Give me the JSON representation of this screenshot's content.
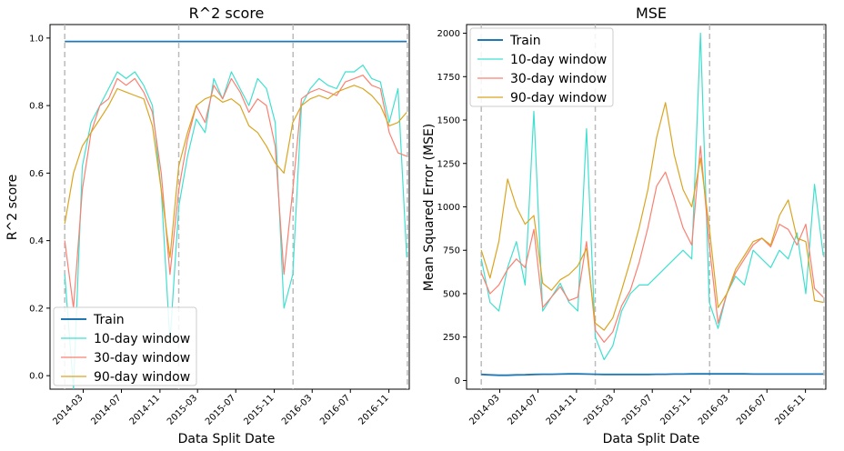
{
  "colors": {
    "train": "#1f77b4",
    "w10": "#40e0d0",
    "w30": "#fa8072",
    "w90": "#daa520",
    "vline": "#bbbbbb"
  },
  "chart_data": [
    {
      "type": "line",
      "title": "R^2 score",
      "xlabel": "Data Split Date",
      "ylabel": "R^2 score",
      "xlim": [
        "2013-11-15",
        "2017-01-05"
      ],
      "ylim": [
        -0.04,
        1.04
      ],
      "yticks": [
        0.0,
        0.2,
        0.4,
        0.6,
        0.8,
        1.0
      ],
      "ytick_labels": [
        "0.0",
        "0.2",
        "0.4",
        "0.6",
        "0.8",
        "1.0"
      ],
      "xticks": [
        "2014-03-01",
        "2014-07-01",
        "2014-11-01",
        "2015-03-01",
        "2015-07-01",
        "2015-11-01",
        "2016-03-01",
        "2016-07-01",
        "2016-11-01"
      ],
      "xtick_labels": [
        "2014-03",
        "2014-07",
        "2014-11",
        "2015-03",
        "2015-07",
        "2015-11",
        "2016-03",
        "2016-07",
        "2016-11"
      ],
      "vlines": [
        "2014-01-01",
        "2014-12-31",
        "2015-12-31",
        "2016-12-30"
      ],
      "legend": "lower-left",
      "legend_entries": [
        "Train",
        "10-day window",
        "30-day window",
        "90-day window"
      ],
      "x": [
        "2014-01-01",
        "2014-01-29",
        "2014-02-26",
        "2014-03-26",
        "2014-04-23",
        "2014-05-21",
        "2014-06-18",
        "2014-07-16",
        "2014-08-13",
        "2014-09-10",
        "2014-10-08",
        "2014-11-05",
        "2014-12-03",
        "2014-12-31",
        "2015-01-28",
        "2015-02-25",
        "2015-03-25",
        "2015-04-22",
        "2015-05-20",
        "2015-06-17",
        "2015-07-15",
        "2015-08-12",
        "2015-09-09",
        "2015-10-07",
        "2015-11-04",
        "2015-12-02",
        "2015-12-30",
        "2016-01-27",
        "2016-02-24",
        "2016-03-23",
        "2016-04-20",
        "2016-05-18",
        "2016-06-15",
        "2016-07-13",
        "2016-08-10",
        "2016-09-07",
        "2016-10-05",
        "2016-11-02",
        "2016-11-30",
        "2016-12-28"
      ],
      "series": [
        {
          "name": "Train",
          "color_key": "train",
          "values": [
            0.99,
            0.99,
            0.99,
            0.99,
            0.99,
            0.99,
            0.99,
            0.99,
            0.99,
            0.99,
            0.99,
            0.99,
            0.99,
            0.99,
            0.99,
            0.99,
            0.99,
            0.99,
            0.99,
            0.99,
            0.99,
            0.99,
            0.99,
            0.99,
            0.99,
            0.99,
            0.99,
            0.99,
            0.99,
            0.99,
            0.99,
            0.99,
            0.99,
            0.99,
            0.99,
            0.99,
            0.99,
            0.99,
            0.99,
            0.99
          ]
        },
        {
          "name": "10-day window",
          "color_key": "w10",
          "values": [
            0.3,
            -0.04,
            0.62,
            0.75,
            0.8,
            0.85,
            0.9,
            0.88,
            0.9,
            0.86,
            0.8,
            0.55,
            0.1,
            0.5,
            0.65,
            0.76,
            0.72,
            0.88,
            0.82,
            0.9,
            0.85,
            0.8,
            0.88,
            0.85,
            0.75,
            0.2,
            0.3,
            0.8,
            0.85,
            0.88,
            0.86,
            0.85,
            0.9,
            0.9,
            0.92,
            0.88,
            0.87,
            0.75,
            0.85,
            0.35
          ]
        },
        {
          "name": "30-day window",
          "color_key": "w30",
          "values": [
            0.4,
            0.2,
            0.55,
            0.72,
            0.8,
            0.82,
            0.88,
            0.86,
            0.88,
            0.84,
            0.78,
            0.6,
            0.3,
            0.55,
            0.7,
            0.8,
            0.75,
            0.86,
            0.82,
            0.88,
            0.84,
            0.78,
            0.82,
            0.8,
            0.68,
            0.3,
            0.55,
            0.82,
            0.84,
            0.85,
            0.84,
            0.83,
            0.87,
            0.88,
            0.89,
            0.86,
            0.85,
            0.72,
            0.66,
            0.65
          ]
        },
        {
          "name": "90-day window",
          "color_key": "w90",
          "values": [
            0.45,
            0.6,
            0.68,
            0.72,
            0.76,
            0.8,
            0.85,
            0.84,
            0.83,
            0.82,
            0.74,
            0.55,
            0.35,
            0.62,
            0.72,
            0.8,
            0.82,
            0.83,
            0.81,
            0.82,
            0.8,
            0.74,
            0.72,
            0.68,
            0.63,
            0.6,
            0.75,
            0.8,
            0.82,
            0.83,
            0.82,
            0.84,
            0.85,
            0.86,
            0.85,
            0.83,
            0.8,
            0.74,
            0.75,
            0.78
          ]
        }
      ]
    },
    {
      "type": "line",
      "title": "MSE",
      "xlabel": "Data Split Date",
      "ylabel": "Mean Squared Error (MSE)",
      "xlim": [
        "2013-11-15",
        "2017-01-05"
      ],
      "ylim": [
        -50,
        2050
      ],
      "yticks": [
        0,
        250,
        500,
        750,
        1000,
        1250,
        1500,
        1750,
        2000
      ],
      "ytick_labels": [
        "0",
        "250",
        "500",
        "750",
        "1000",
        "1250",
        "1500",
        "1750",
        "2000"
      ],
      "xticks": [
        "2014-03-01",
        "2014-07-01",
        "2014-11-01",
        "2015-03-01",
        "2015-07-01",
        "2015-11-01",
        "2016-03-01",
        "2016-07-01",
        "2016-11-01"
      ],
      "xtick_labels": [
        "2014-03",
        "2014-07",
        "2014-11",
        "2015-03",
        "2015-07",
        "2015-11",
        "2016-03",
        "2016-07",
        "2016-11"
      ],
      "vlines": [
        "2014-01-01",
        "2014-12-31",
        "2015-12-31",
        "2016-12-30"
      ],
      "legend": "top-left",
      "legend_entries": [
        "Train",
        "10-day window",
        "30-day window",
        "90-day window"
      ],
      "x": [
        "2014-01-01",
        "2014-01-29",
        "2014-02-26",
        "2014-03-26",
        "2014-04-23",
        "2014-05-21",
        "2014-06-18",
        "2014-07-16",
        "2014-08-13",
        "2014-09-10",
        "2014-10-08",
        "2014-11-05",
        "2014-12-03",
        "2014-12-31",
        "2015-01-28",
        "2015-02-25",
        "2015-03-25",
        "2015-04-22",
        "2015-05-20",
        "2015-06-17",
        "2015-07-15",
        "2015-08-12",
        "2015-09-09",
        "2015-10-07",
        "2015-11-04",
        "2015-12-02",
        "2015-12-30",
        "2016-01-27",
        "2016-02-24",
        "2016-03-23",
        "2016-04-20",
        "2016-05-18",
        "2016-06-15",
        "2016-07-13",
        "2016-08-10",
        "2016-09-07",
        "2016-10-05",
        "2016-11-02",
        "2016-11-30",
        "2016-12-28"
      ],
      "series": [
        {
          "name": "Train",
          "color_key": "train",
          "values": [
            35,
            32,
            30,
            30,
            32,
            33,
            35,
            36,
            36,
            37,
            38,
            38,
            37,
            36,
            35,
            35,
            35,
            35,
            35,
            35,
            36,
            36,
            37,
            37,
            38,
            38,
            38,
            38,
            38,
            38,
            38,
            37,
            37,
            37,
            37,
            37,
            37,
            37,
            37,
            37
          ]
        },
        {
          "name": "10-day window",
          "color_key": "w10",
          "values": [
            700,
            450,
            400,
            650,
            800,
            550,
            1550,
            400,
            480,
            560,
            450,
            400,
            1450,
            250,
            120,
            200,
            400,
            500,
            550,
            550,
            600,
            650,
            700,
            750,
            700,
            2000,
            450,
            300,
            500,
            600,
            550,
            750,
            700,
            650,
            750,
            700,
            850,
            500,
            1130,
            720
          ]
        },
        {
          "name": "30-day window",
          "color_key": "w30",
          "values": [
            620,
            500,
            550,
            640,
            700,
            650,
            870,
            420,
            480,
            540,
            460,
            480,
            800,
            290,
            220,
            280,
            430,
            520,
            680,
            880,
            1120,
            1200,
            1050,
            880,
            780,
            1350,
            780,
            330,
            500,
            620,
            700,
            780,
            820,
            770,
            900,
            870,
            780,
            900,
            530,
            480
          ]
        },
        {
          "name": "90-day window",
          "color_key": "w90",
          "values": [
            750,
            590,
            800,
            1160,
            1000,
            900,
            950,
            560,
            520,
            580,
            610,
            660,
            760,
            330,
            290,
            360,
            520,
            690,
            880,
            1100,
            1400,
            1600,
            1300,
            1100,
            1000,
            1280,
            880,
            420,
            500,
            640,
            720,
            800,
            820,
            780,
            950,
            1040,
            820,
            800,
            460,
            450
          ]
        }
      ]
    }
  ]
}
